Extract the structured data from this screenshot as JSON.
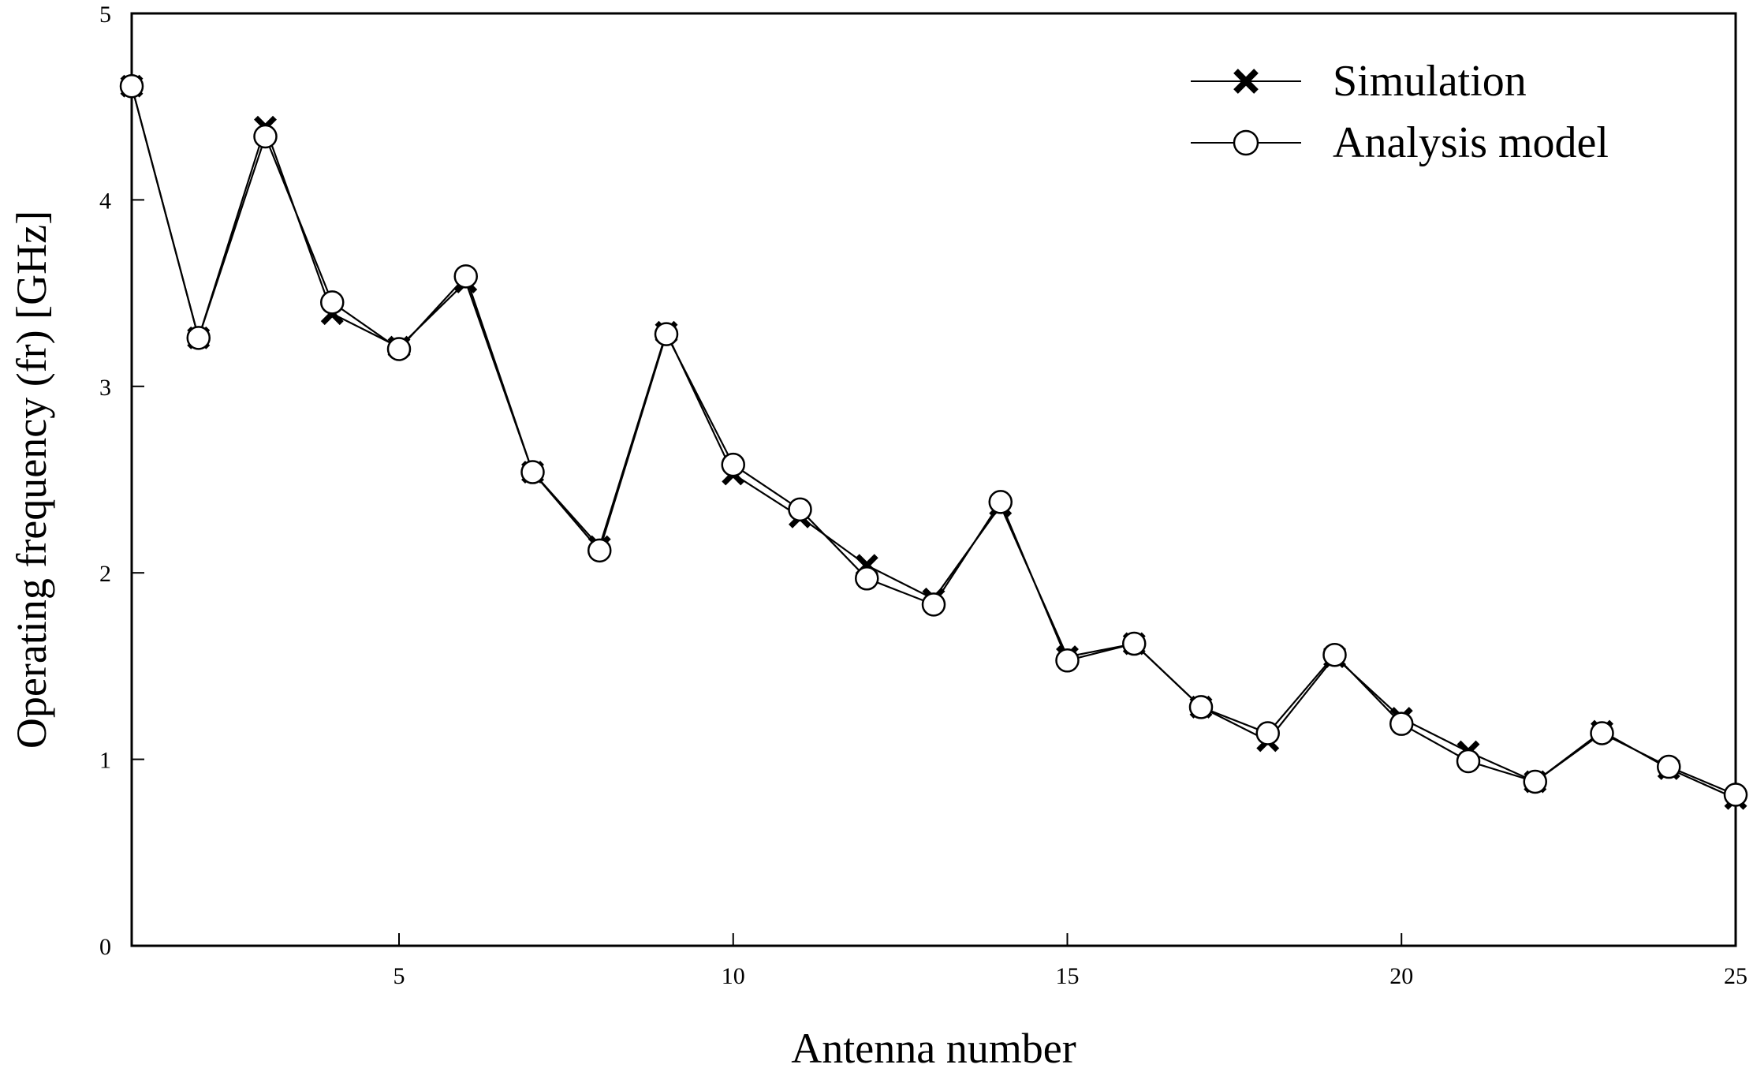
{
  "chart_data": {
    "type": "line",
    "title": "",
    "xlabel": "Antenna number",
    "ylabel": "Operating frequency (fr) [GHz]",
    "xlim": [
      1,
      25
    ],
    "ylim": [
      0,
      5
    ],
    "xticks": [
      5,
      10,
      15,
      20,
      25
    ],
    "yticks": [
      0,
      1,
      2,
      3,
      4,
      5
    ],
    "grid": false,
    "legend_position": "top-right",
    "x": [
      1,
      2,
      3,
      4,
      5,
      6,
      7,
      8,
      9,
      10,
      11,
      12,
      13,
      14,
      15,
      16,
      17,
      18,
      19,
      20,
      21,
      22,
      23,
      24,
      25
    ],
    "series": [
      {
        "name": "Simulation",
        "marker": "x",
        "values": [
          4.61,
          3.26,
          4.39,
          3.39,
          3.21,
          3.56,
          2.54,
          2.14,
          3.29,
          2.53,
          2.3,
          2.04,
          1.86,
          2.36,
          1.55,
          1.62,
          1.28,
          1.1,
          1.55,
          1.22,
          1.04,
          0.88,
          1.15,
          0.95,
          0.79
        ]
      },
      {
        "name": "Analysis model",
        "marker": "circle",
        "values": [
          4.61,
          3.26,
          4.34,
          3.45,
          3.2,
          3.59,
          2.54,
          2.12,
          3.28,
          2.58,
          2.34,
          1.97,
          1.83,
          2.38,
          1.53,
          1.62,
          1.28,
          1.14,
          1.56,
          1.19,
          0.99,
          0.88,
          1.14,
          0.96,
          0.81
        ]
      }
    ]
  }
}
